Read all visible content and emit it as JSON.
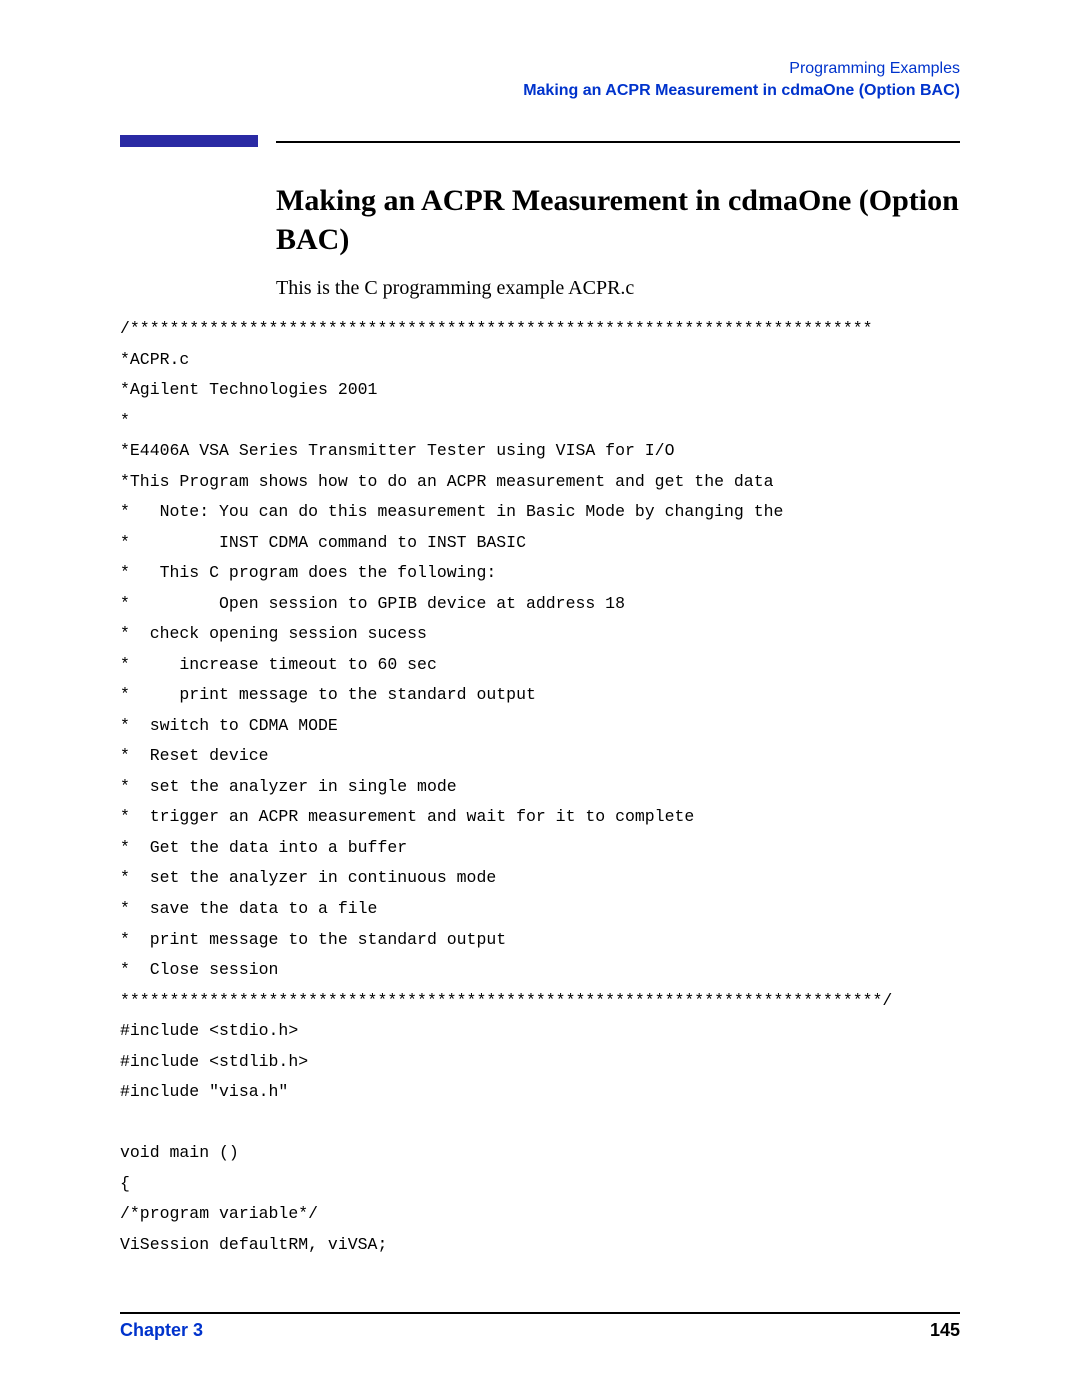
{
  "header": {
    "line1": "Programming Examples",
    "line2": "Making an ACPR Measurement in cdmaOne (Option BAC)"
  },
  "title": "Making an ACPR Measurement in cdmaOne (Option BAC)",
  "intro": "This is the C programming example ACPR.c",
  "code": "/***************************************************************************\n*ACPR.c\n*Agilent Technologies 2001\n*\n*E4406A VSA Series Transmitter Tester using VISA for I/O\n*This Program shows how to do an ACPR measurement and get the data\n*   Note: You can do this measurement in Basic Mode by changing the\n*         INST CDMA command to INST BASIC\n*   This C program does the following:\n*         Open session to GPIB device at address 18\n*  check opening session sucess\n*     increase timeout to 60 sec\n*     print message to the standard output\n*  switch to CDMA MODE\n*  Reset device\n*  set the analyzer in single mode\n*  trigger an ACPR measurement and wait for it to complete\n*  Get the data into a buffer\n*  set the analyzer in continuous mode\n*  save the data to a file\n*  print message to the standard output\n*  Close session\n*****************************************************************************/\n#include <stdio.h>\n#include <stdlib.h>\n#include \"visa.h\"\n\nvoid main ()\n{\n/*program variable*/\nViSession defaultRM, viVSA;",
  "footer": {
    "chapter": "Chapter 3",
    "page": "145"
  },
  "colors": {
    "link_blue": "#0033cc",
    "bar_blue": "#2a2aa4",
    "text": "#000000",
    "background": "#ffffff"
  },
  "typography": {
    "body_font": "Times New Roman",
    "mono_font": "Courier New",
    "sans_font": "Arial",
    "title_size_pt": 22,
    "body_size_pt": 15,
    "code_size_pt": 12,
    "header_size_pt": 12
  }
}
